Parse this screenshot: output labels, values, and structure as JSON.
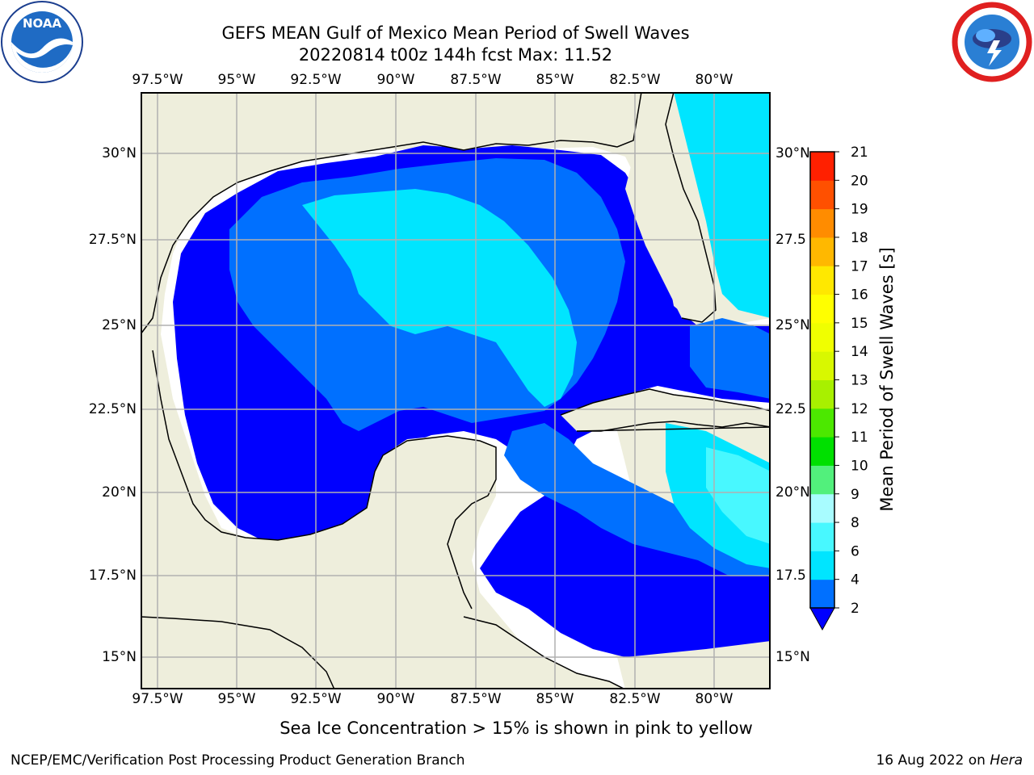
{
  "title": "GEFS MEAN Gulf of Mexico Mean Period of Swell Waves",
  "subtitle": "20220814 t00z 144h fcst   Max: 11.52",
  "logos": {
    "left": "noaa-logo",
    "right": "national-weather-service-logo"
  },
  "lon_labels": [
    "97.5°W",
    "95°W",
    "92.5°W",
    "90°W",
    "87.5°W",
    "85°W",
    "82.5°W",
    "80°W"
  ],
  "lat_labels_left": [
    "30°N",
    "27.5°N",
    "25°N",
    "22.5°N",
    "20°N",
    "17.5°N",
    "15°N"
  ],
  "lat_labels_right": [
    "30°N",
    "27.5",
    "25°N",
    "22.5",
    "20°N",
    "17.5",
    "15°N"
  ],
  "colorbar": {
    "label": "Mean Period of Swell Waves [s]",
    "ticks": [
      "2",
      "4",
      "6",
      "8",
      "9",
      "10",
      "11",
      "12",
      "13",
      "14",
      "15",
      "16",
      "17",
      "18",
      "19",
      "20",
      "21"
    ],
    "colors": [
      "#0070ff",
      "#00e5ff",
      "#48f8ff",
      "#a8fcff",
      "#52f07c",
      "#00e000",
      "#4ce800",
      "#a8f000",
      "#d8f800",
      "#f0ff00",
      "#ffff00",
      "#ffe800",
      "#ffb800",
      "#ff8c00",
      "#ff5000",
      "#ff2000",
      "#ff0000"
    ],
    "under_color": "#0000ff"
  },
  "map_colors": {
    "land": "#eeeedc",
    "water_low": "#0000ff",
    "water_2": "#0070ff",
    "water_4": "#00e5ff",
    "water_6": "#48f8ff",
    "nodata": "#ffffff",
    "grid": "#b0b0b0"
  },
  "footnote": "Sea Ice Concentration > 15% is shown in pink to yellow",
  "credit": "NCEP/EMC/Verification Post Processing Product Generation Branch",
  "date": "16 Aug 2022 on",
  "machine": "Hera"
}
